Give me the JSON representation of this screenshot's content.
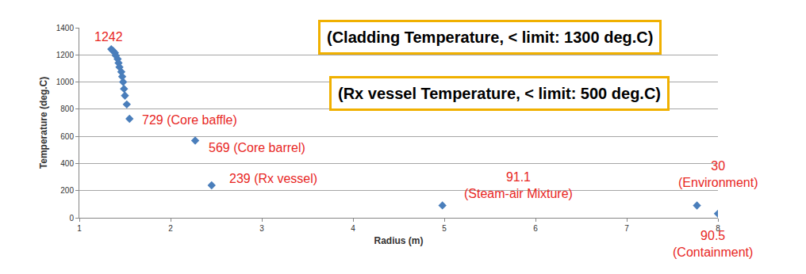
{
  "chart_data": {
    "type": "scatter",
    "x_label": "Radius (m)",
    "y_label": "Temperature (deg.C)",
    "x": [
      1.35,
      1.37,
      1.39,
      1.4,
      1.42,
      1.43,
      1.44,
      1.46,
      1.47,
      1.48,
      1.49,
      1.5,
      1.52,
      1.55,
      2.27,
      2.45,
      4.98,
      7.77,
      8.0
    ],
    "values": [
      1242,
      1230,
      1215,
      1195,
      1170,
      1140,
      1110,
      1075,
      1040,
      1000,
      950,
      900,
      835,
      729,
      569,
      239,
      91.1,
      90.5,
      30
    ],
    "color": "#4a7ebb",
    "marker": "diamond",
    "xlim": [
      1,
      8
    ],
    "xticks": [
      1,
      2,
      3,
      4,
      5,
      6,
      7,
      8
    ],
    "ylim": [
      0,
      1400
    ],
    "yticks": [
      0,
      200,
      400,
      600,
      800,
      1000,
      1200,
      1400
    ],
    "grid": true,
    "annotations": [
      {
        "text": [
          "1242"
        ],
        "x": 1.35,
        "y": 1242
      },
      {
        "text": [
          "729 (Core baffle)"
        ],
        "x": 1.55,
        "y": 729
      },
      {
        "text": [
          "569 (Core barrel)"
        ],
        "x": 2.27,
        "y": 569
      },
      {
        "text": [
          "239 (Rx vessel)"
        ],
        "x": 2.45,
        "y": 239
      },
      {
        "text": [
          "91.1",
          "(Steam-air Mixture)"
        ],
        "x": 4.98,
        "y": 91.1
      },
      {
        "text": [
          "30",
          "(Environment)"
        ],
        "x": 8.0,
        "y": 30
      },
      {
        "text": [
          "90.5",
          "(Containment)"
        ],
        "x": 7.77,
        "y": 90.5
      }
    ],
    "notes": [
      "(Cladding Temperature, < limit: 1300 deg.C)",
      "(Rx vessel Temperature, < limit: 500 deg.C)"
    ]
  }
}
